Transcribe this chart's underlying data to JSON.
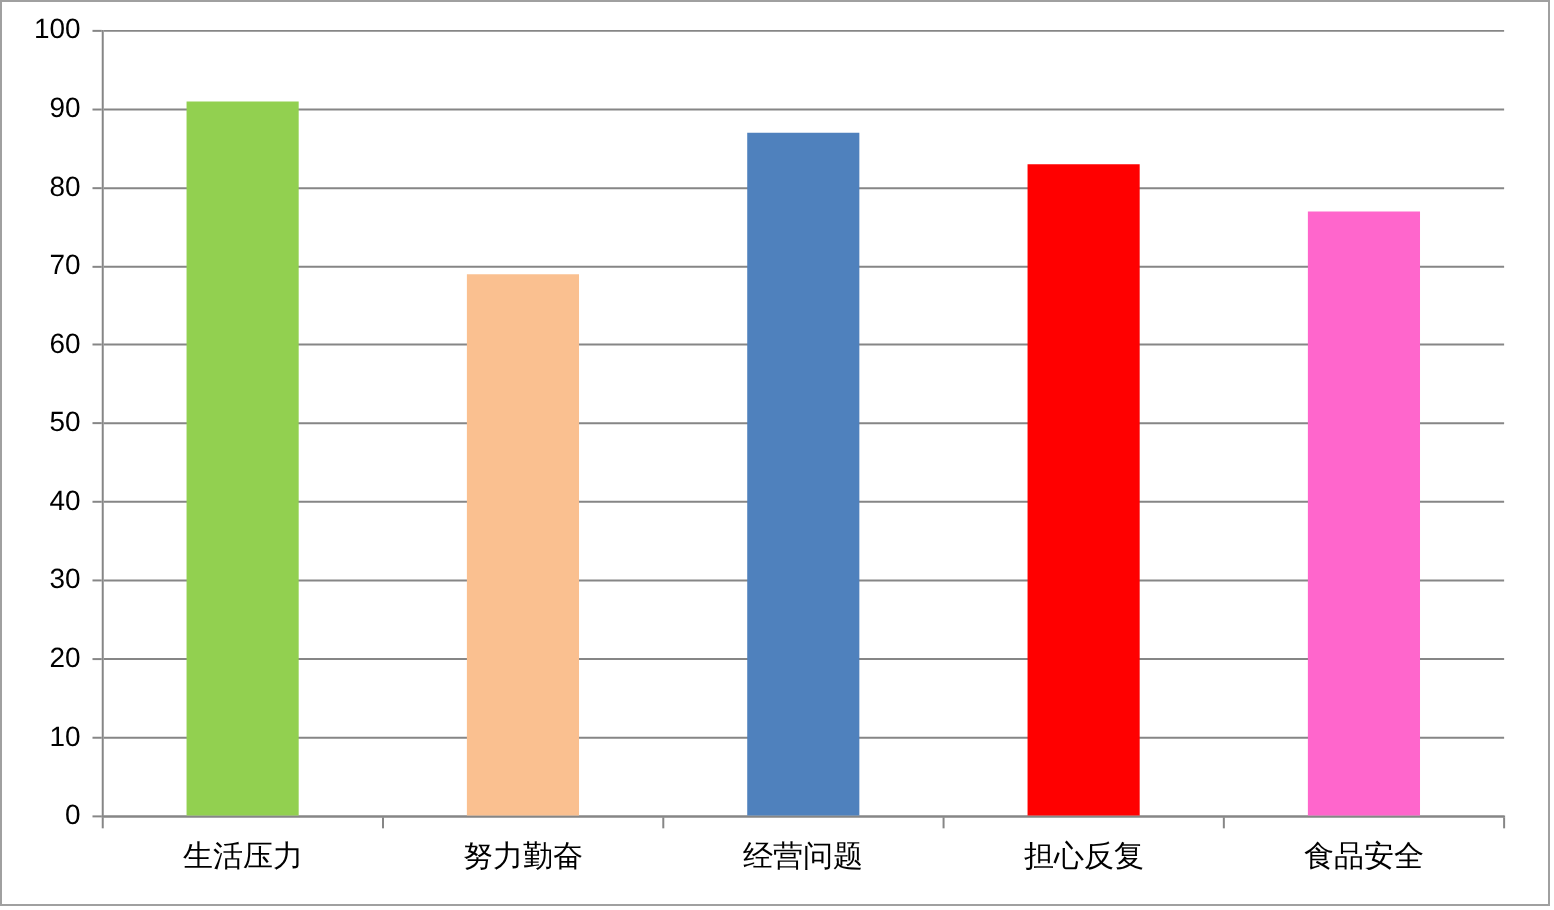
{
  "chart_data": {
    "type": "bar",
    "categories": [
      "生活压力",
      "努力勤奋",
      "经营问题",
      "担心反复",
      "食品安全"
    ],
    "values": [
      91,
      69,
      87,
      83,
      77
    ],
    "colors": [
      "#92d050",
      "#fac090",
      "#4f81bd",
      "#ff0000",
      "#ff66cc"
    ],
    "ylim": [
      0,
      100
    ],
    "yticks": [
      0,
      10,
      20,
      30,
      40,
      50,
      60,
      70,
      80,
      90,
      100
    ],
    "grid": "y",
    "legend": false
  }
}
